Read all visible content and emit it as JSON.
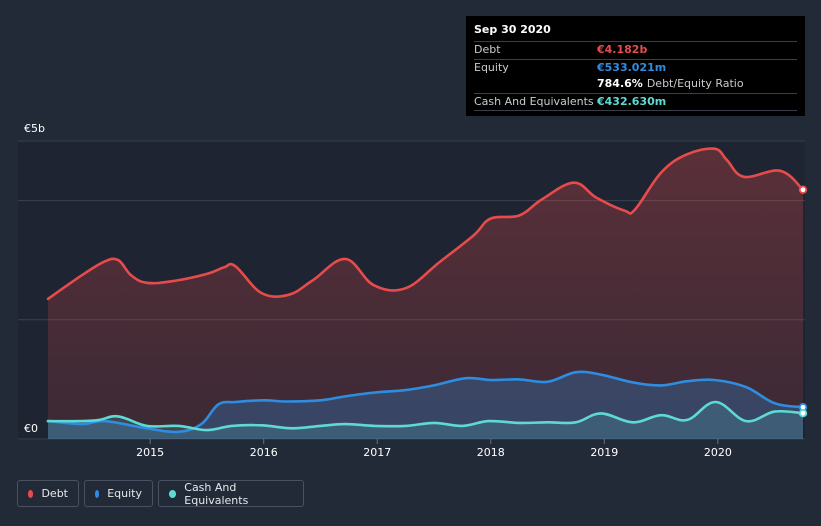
{
  "chart_data": {
    "type": "area",
    "y_axis_labels": [
      "€5b",
      "€0"
    ],
    "x_tick_labels": [
      "2015",
      "2016",
      "2017",
      "2018",
      "2019",
      "2020"
    ],
    "x_range": [
      2014.1,
      2020.75
    ],
    "y_range_billions": [
      0,
      5
    ],
    "series": [
      {
        "name": "Debt",
        "color": "#e84b4b",
        "x": [
          2014.1,
          2014.4,
          2014.6,
          2014.72,
          2014.83,
          2014.97,
          2015.2,
          2015.5,
          2015.65,
          2015.75,
          2015.98,
          2016.22,
          2016.43,
          2016.72,
          2016.97,
          2017.25,
          2017.55,
          2017.85,
          2018.0,
          2018.25,
          2018.45,
          2018.73,
          2018.93,
          2019.18,
          2019.27,
          2019.5,
          2019.72,
          2019.97,
          2020.08,
          2020.23,
          2020.55,
          2020.75
        ],
        "y": [
          2.35,
          2.75,
          2.98,
          3.0,
          2.75,
          2.62,
          2.65,
          2.77,
          2.88,
          2.9,
          2.45,
          2.42,
          2.66,
          3.02,
          2.58,
          2.53,
          2.97,
          3.42,
          3.7,
          3.75,
          4.02,
          4.3,
          4.05,
          3.83,
          3.85,
          4.47,
          4.77,
          4.87,
          4.68,
          4.4,
          4.5,
          4.182
        ]
      },
      {
        "name": "Equity",
        "color": "#2e8de0",
        "x": [
          2014.1,
          2014.4,
          2014.6,
          2014.97,
          2015.25,
          2015.45,
          2015.6,
          2015.75,
          2016.0,
          2016.2,
          2016.5,
          2016.73,
          2016.98,
          2017.25,
          2017.5,
          2017.78,
          2018.0,
          2018.25,
          2018.5,
          2018.75,
          2018.97,
          2019.25,
          2019.5,
          2019.73,
          2019.97,
          2020.25,
          2020.5,
          2020.75
        ],
        "y": [
          0.3,
          0.25,
          0.3,
          0.18,
          0.12,
          0.25,
          0.58,
          0.62,
          0.65,
          0.63,
          0.65,
          0.72,
          0.78,
          0.82,
          0.9,
          1.02,
          0.99,
          1.0,
          0.96,
          1.12,
          1.08,
          0.95,
          0.9,
          0.97,
          0.99,
          0.87,
          0.6,
          0.533
        ]
      },
      {
        "name": "Cash And Equivalents",
        "color": "#5fdad2",
        "x": [
          2014.1,
          2014.4,
          2014.55,
          2014.72,
          2014.97,
          2015.25,
          2015.5,
          2015.72,
          2015.98,
          2016.25,
          2016.5,
          2016.72,
          2016.98,
          2017.25,
          2017.5,
          2017.75,
          2017.98,
          2018.25,
          2018.5,
          2018.75,
          2018.97,
          2019.25,
          2019.5,
          2019.73,
          2019.98,
          2020.25,
          2020.5,
          2020.75
        ],
        "y": [
          0.3,
          0.3,
          0.32,
          0.38,
          0.22,
          0.22,
          0.15,
          0.22,
          0.23,
          0.18,
          0.22,
          0.25,
          0.22,
          0.22,
          0.27,
          0.22,
          0.3,
          0.27,
          0.28,
          0.28,
          0.43,
          0.28,
          0.4,
          0.32,
          0.62,
          0.3,
          0.46,
          0.433
        ]
      }
    ]
  },
  "tooltip": {
    "date": "Sep 30 2020",
    "debt_label": "Debt",
    "debt_value": "€4.182b",
    "equity_label": "Equity",
    "equity_value": "€533.021m",
    "ratio_value": "784.6%",
    "ratio_label": "Debt/Equity Ratio",
    "cash_label": "Cash And Equivalents",
    "cash_value": "€432.630m"
  },
  "legend": {
    "debt": "Debt",
    "equity": "Equity",
    "cash": "Cash And Equivalents"
  },
  "colors": {
    "background": "#222a38",
    "plot_past": "#1e2431",
    "debt": "#e84b4b",
    "equity": "#2e8de0",
    "cash": "#5fdad2"
  }
}
